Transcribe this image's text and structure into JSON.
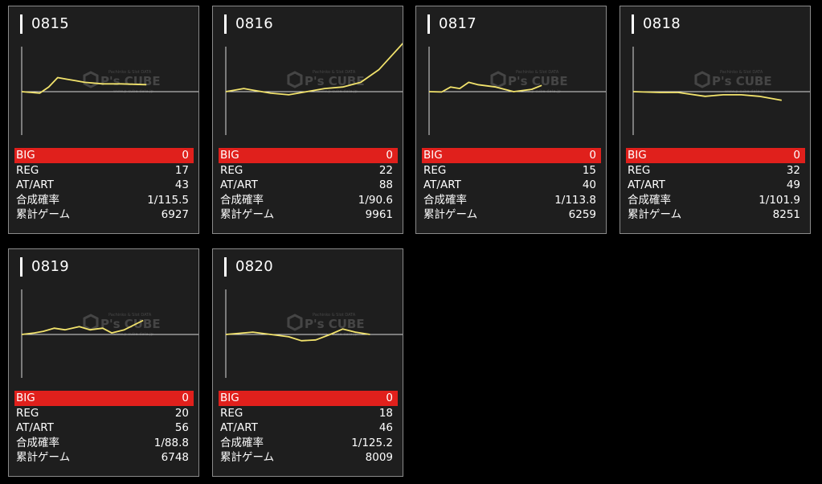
{
  "labels": {
    "big": "BIG",
    "reg": "REG",
    "atart": "AT/ART",
    "prob": "合成確率",
    "games": "累計ゲーム"
  },
  "colors": {
    "background": "#000000",
    "card": "#1e1e1e",
    "border": "#8a8a8a",
    "big_bar": "#e0201c",
    "graph_line": "#f2e36c",
    "axis": "#d9d9d9"
  },
  "machines": [
    {
      "id": "0815",
      "big": "0",
      "reg": "17",
      "atart": "43",
      "prob": "1/115.5",
      "games": "6927"
    },
    {
      "id": "0816",
      "big": "0",
      "reg": "22",
      "atart": "88",
      "prob": "1/90.6",
      "games": "9961"
    },
    {
      "id": "0817",
      "big": "0",
      "reg": "15",
      "atart": "40",
      "prob": "1/113.8",
      "games": "6259"
    },
    {
      "id": "0818",
      "big": "0",
      "reg": "32",
      "atart": "49",
      "prob": "1/101.9",
      "games": "8251"
    },
    {
      "id": "0819",
      "big": "0",
      "reg": "20",
      "atart": "56",
      "prob": "1/88.8",
      "games": "6748"
    },
    {
      "id": "0820",
      "big": "0",
      "reg": "18",
      "atart": "46",
      "prob": "1/125.2",
      "games": "8009"
    }
  ],
  "chart_data": [
    {
      "type": "line",
      "title": "0815",
      "games": [
        0,
        1000,
        1500,
        2000,
        2500,
        3000,
        3500,
        4500,
        5500,
        6927
      ],
      "values": [
        0,
        -100,
        300,
        900,
        800,
        700,
        600,
        500,
        500,
        450
      ]
    },
    {
      "type": "line",
      "title": "0816",
      "games": [
        0,
        1000,
        1500,
        2500,
        3500,
        4500,
        5500,
        6500,
        7500,
        8500,
        9961
      ],
      "values": [
        0,
        200,
        100,
        -100,
        -200,
        0,
        200,
        300,
        600,
        1400,
        3250
      ]
    },
    {
      "type": "line",
      "title": "0817",
      "games": [
        0,
        700,
        1200,
        1700,
        2200,
        2700,
        3700,
        4700,
        5700,
        6259
      ],
      "values": [
        0,
        -20,
        300,
        200,
        600,
        450,
        300,
        0,
        150,
        400
      ]
    },
    {
      "type": "line",
      "title": "0818",
      "games": [
        0,
        1500,
        2500,
        4000,
        5000,
        6000,
        7000,
        8251
      ],
      "values": [
        0,
        -50,
        -50,
        -300,
        -200,
        -200,
        -300,
        -550
      ]
    },
    {
      "type": "line",
      "title": "0819",
      "games": [
        0,
        700,
        1200,
        1800,
        2400,
        3200,
        3800,
        4500,
        5000,
        5700,
        6748
      ],
      "values": [
        0,
        100,
        200,
        400,
        300,
        500,
        300,
        400,
        100,
        300,
        900
      ]
    },
    {
      "type": "line",
      "title": "0820",
      "games": [
        0,
        1500,
        2500,
        3500,
        4200,
        5000,
        5800,
        6500,
        7200,
        8009
      ],
      "values": [
        0,
        150,
        0,
        -150,
        -400,
        -350,
        0,
        350,
        150,
        0
      ]
    }
  ],
  "watermark": {
    "top": "Pachinko & Slot DATA",
    "main": "P's CUBE",
    "sub": "www.p-cube-data.jp"
  }
}
